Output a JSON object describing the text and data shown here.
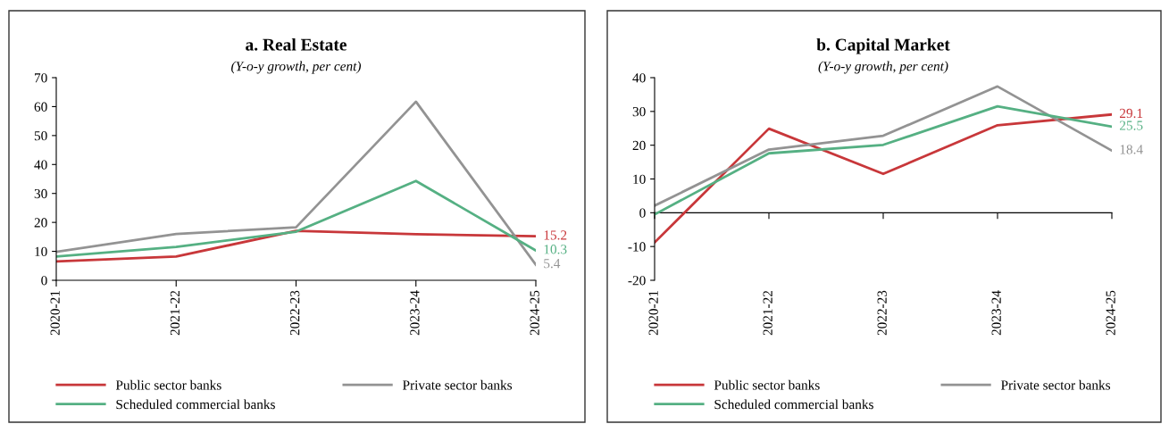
{
  "chart_data": [
    {
      "type": "line",
      "title": "a. Real Estate",
      "subtitle": "(Y-o-y growth, per cent)",
      "categories": [
        "2020-21",
        "2021-22",
        "2022-23",
        "2023-24",
        "2024-25"
      ],
      "ylim": [
        0,
        70
      ],
      "yticks": [
        0,
        10,
        20,
        30,
        40,
        50,
        60,
        70
      ],
      "legend": "bottom",
      "series": [
        {
          "name": "Public sector banks",
          "color": "#c8373a",
          "values": [
            6.5,
            8.2,
            17.1,
            15.9,
            15.2
          ],
          "value_labels": [
            null,
            null,
            null,
            null,
            "15.2"
          ]
        },
        {
          "name": "Private sector banks",
          "color": "#939393",
          "values": [
            9.8,
            16.0,
            18.3,
            61.7,
            5.4
          ],
          "value_labels": [
            null,
            null,
            null,
            null,
            "5.4"
          ]
        },
        {
          "name": "Scheduled commercial banks",
          "color": "#55b083",
          "values": [
            8.2,
            11.5,
            16.8,
            34.3,
            10.3
          ],
          "value_labels": [
            null,
            null,
            null,
            null,
            "10.3"
          ]
        }
      ]
    },
    {
      "type": "line",
      "title": "b. Capital Market",
      "subtitle": "(Y-o-y growth, per cent)",
      "categories": [
        "2020-21",
        "2021-22",
        "2022-23",
        "2023-24",
        "2024-25"
      ],
      "ylim": [
        -20,
        40
      ],
      "yticks": [
        -20,
        -10,
        0,
        10,
        20,
        30,
        40
      ],
      "legend": "bottom",
      "series": [
        {
          "name": "Public sector banks",
          "color": "#c8373a",
          "values": [
            -8.8,
            24.9,
            11.5,
            25.9,
            29.1
          ],
          "value_labels": [
            null,
            null,
            null,
            null,
            "29.1"
          ]
        },
        {
          "name": "Private sector banks",
          "color": "#939393",
          "values": [
            2.1,
            18.7,
            22.8,
            37.4,
            18.4
          ],
          "value_labels": [
            null,
            null,
            null,
            null,
            "18.4"
          ]
        },
        {
          "name": "Scheduled commercial banks",
          "color": "#55b083",
          "values": [
            -0.5,
            17.6,
            20.1,
            31.5,
            25.5
          ],
          "value_labels": [
            null,
            null,
            null,
            null,
            "25.5"
          ]
        }
      ]
    }
  ]
}
